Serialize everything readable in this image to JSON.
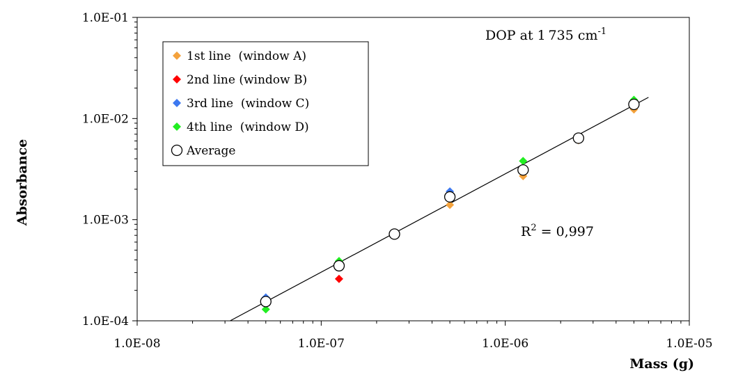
{
  "chart_data": {
    "type": "scatter",
    "xscale": "log",
    "yscale": "log",
    "xlim": [
      1e-08,
      1e-05
    ],
    "ylim": [
      0.0001,
      0.1
    ],
    "xlabel": "Mass (g)",
    "ylabel": "Absorbance",
    "x_ticks": [
      "1.0E-08",
      "1.0E-07",
      "1.0E-06",
      "1.0E-05"
    ],
    "y_ticks": [
      "1.0E-04",
      "1.0E-03",
      "1.0E-02",
      "1.0E-01"
    ],
    "annotation_main": "DOP at 1 735 cm",
    "annotation_sup": "-1",
    "r2_base": "R",
    "r2_sup": "2",
    "r2_value": " = 0,997",
    "grid": false,
    "legend_position": "top-left",
    "series": [
      {
        "name": "1st line  (window A)",
        "marker": "diamond",
        "color": "#f4a23c",
        "points": [
          [
            5e-08,
            0.00015
          ],
          [
            1.25e-07,
            0.00036
          ],
          [
            5e-07,
            0.0014
          ],
          [
            1.25e-06,
            0.0027
          ],
          [
            2.5e-06,
            0.0061
          ],
          [
            5e-06,
            0.0123
          ]
        ]
      },
      {
        "name": "2nd line (window B)",
        "marker": "diamond",
        "color": "#ff0000",
        "points": [
          [
            1.25e-07,
            0.00026
          ]
        ]
      },
      {
        "name": "3rd line  (window C)",
        "marker": "diamond",
        "color": "#3c78f0",
        "points": [
          [
            5e-08,
            0.00017
          ],
          [
            5e-07,
            0.0019
          ],
          [
            1.25e-06,
            0.0032
          ],
          [
            5e-06,
            0.0145
          ]
        ]
      },
      {
        "name": "4th line  (window D)",
        "marker": "diamond",
        "color": "#22ee22",
        "points": [
          [
            5e-08,
            0.00013
          ],
          [
            1.25e-07,
            0.00039
          ],
          [
            5e-07,
            0.0017
          ],
          [
            1.25e-06,
            0.0038
          ],
          [
            5e-06,
            0.0153
          ]
        ]
      },
      {
        "name": "Average",
        "marker": "circle",
        "color": "#000000",
        "points": [
          [
            5e-08,
            0.000155
          ],
          [
            1.25e-07,
            0.00035
          ],
          [
            2.5e-07,
            0.00072
          ],
          [
            5e-07,
            0.00168
          ],
          [
            1.25e-06,
            0.0031
          ],
          [
            2.5e-06,
            0.0064
          ],
          [
            5e-06,
            0.0138
          ]
        ]
      }
    ],
    "fit_line": {
      "type": "power",
      "points": [
        [
          3.2e-08,
          0.0001
        ],
        [
          6e-06,
          0.0162
        ]
      ]
    }
  }
}
